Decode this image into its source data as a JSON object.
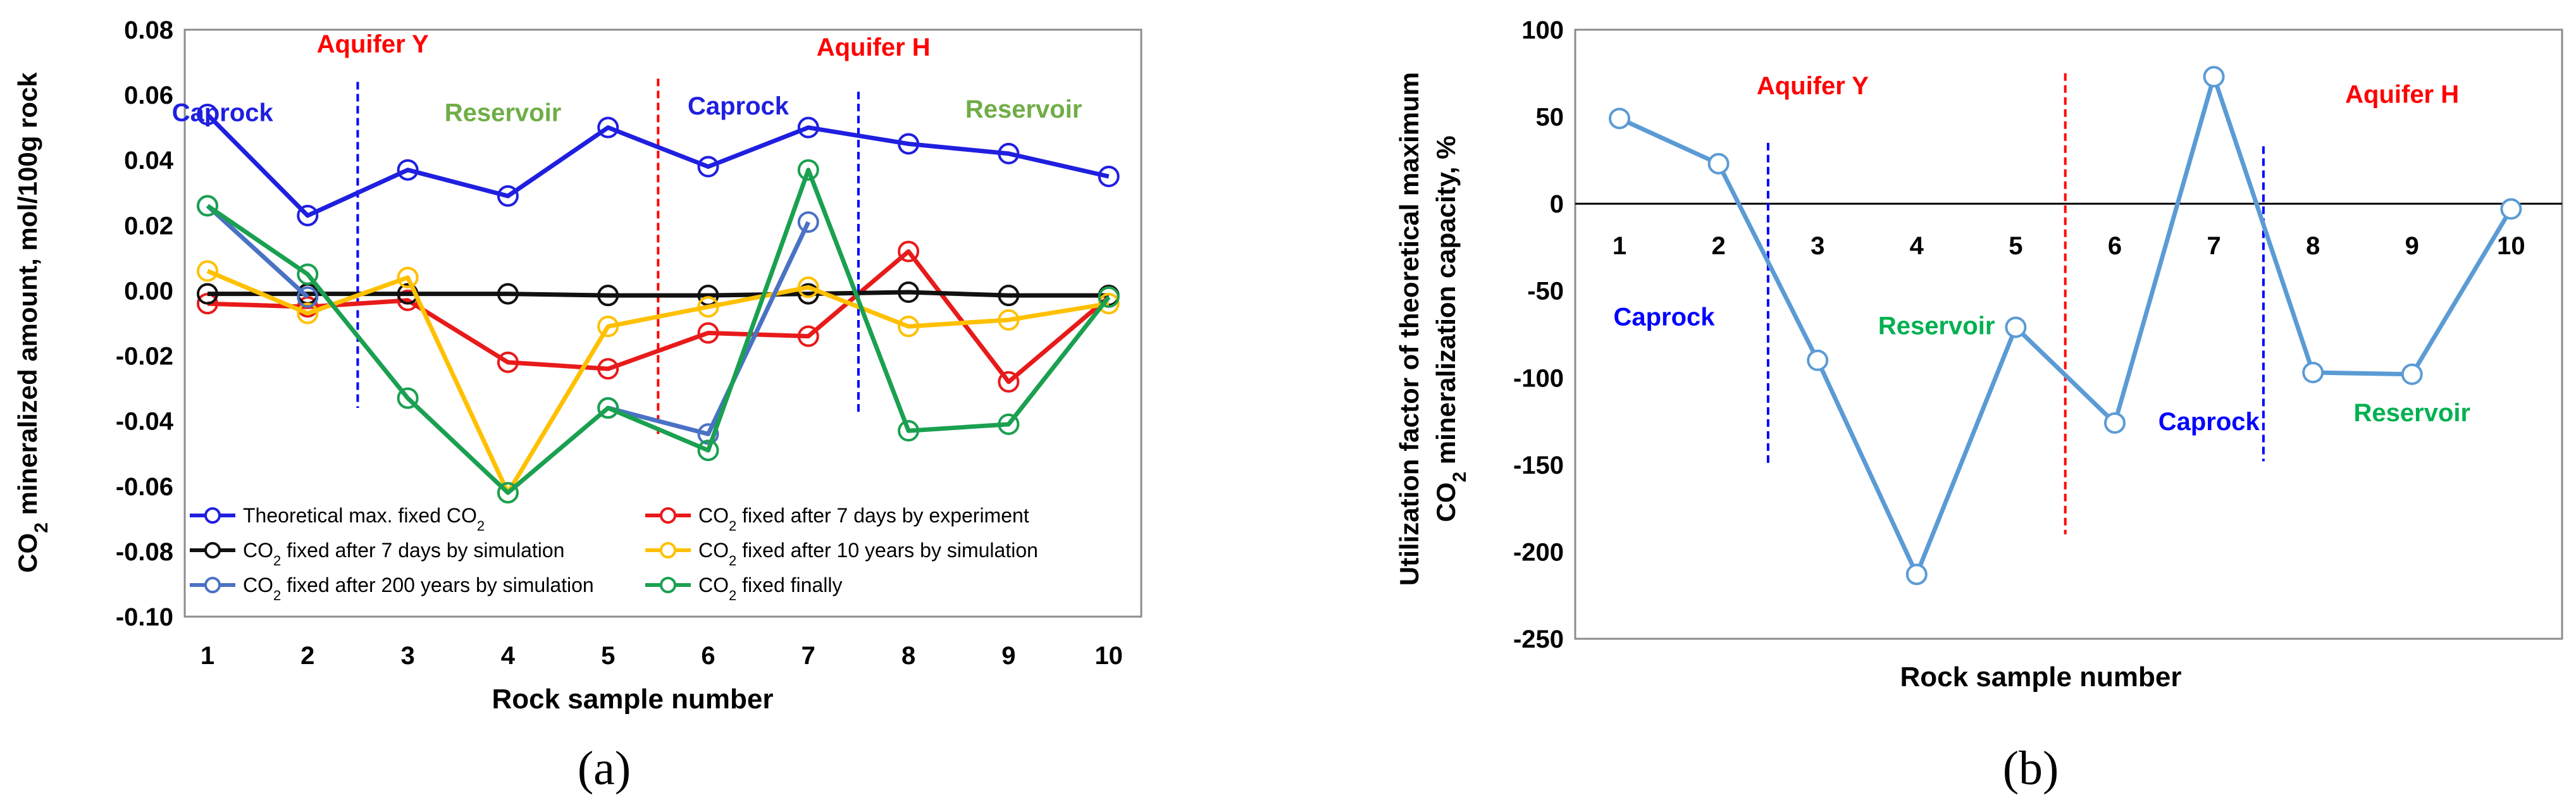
{
  "chart_data": [
    {
      "type": "line",
      "panel_label": "(a)",
      "xlabel": "Rock sample number",
      "ylabel": "CO2 mineralized amount, mol/100g rock",
      "ylabel_parts": {
        "pre": "CO",
        "sub": "2",
        "post": " mineralized amount, mol/100g rock"
      },
      "ylim": [
        -0.1,
        0.08
      ],
      "yticks": [
        "0.08",
        "0.06",
        "0.04",
        "0.02",
        "0.00",
        "-0.02",
        "-0.04",
        "-0.06",
        "-0.08",
        "-0.10"
      ],
      "x": [
        1,
        2,
        3,
        4,
        5,
        6,
        7,
        8,
        9,
        10
      ],
      "xtick_labels": [
        "1",
        "2",
        "3",
        "4",
        "5",
        "6",
        "7",
        "8",
        "9",
        "10"
      ],
      "legend_placement": "bottom-inside",
      "series": [
        {
          "name": "Theoretical max. fixed CO2",
          "label_parts": {
            "pre": "Theoretical max. fixed CO",
            "sub": "2",
            "post": ""
          },
          "color": "#1f1fe0",
          "values": [
            0.054,
            0.023,
            0.037,
            0.029,
            0.05,
            0.038,
            0.05,
            0.045,
            0.042,
            0.035
          ]
        },
        {
          "name": "CO2 fixed after 7 days by experiment",
          "label_parts": {
            "pre": "CO",
            "sub": "2",
            "post": " fixed after 7 days by experiment"
          },
          "color": "#e81a1a",
          "values": [
            -0.004,
            -0.005,
            -0.003,
            -0.022,
            -0.024,
            -0.013,
            -0.014,
            0.012,
            -0.028,
            -0.002
          ]
        },
        {
          "name": "CO2 fixed after 7 days by simulation",
          "label_parts": {
            "pre": "CO",
            "sub": "2",
            "post": " fixed after 7 days by simulation"
          },
          "color": "#111111",
          "values": [
            -0.001,
            -0.001,
            -0.001,
            -0.001,
            -0.0015,
            -0.0015,
            -0.001,
            -0.0005,
            -0.0015,
            -0.0015
          ]
        },
        {
          "name": "CO2 fixed after 10 years by simulation",
          "label_parts": {
            "pre": "CO",
            "sub": "2",
            "post": " fixed after 10 years by simulation"
          },
          "color": "#ffc000",
          "values": [
            0.006,
            -0.007,
            0.004,
            -0.062,
            -0.011,
            -0.005,
            0.001,
            -0.011,
            -0.009,
            -0.004
          ]
        },
        {
          "name": "CO2 fixed after 200 years by simulation",
          "label_parts": {
            "pre": "CO",
            "sub": "2",
            "post": " fixed after 200 years by simulation"
          },
          "color": "#4a72c4",
          "values": [
            0.026,
            -0.002,
            null,
            null,
            -0.036,
            -0.044,
            0.021,
            null,
            null,
            null
          ]
        },
        {
          "name": "CO2 fixed finally",
          "label_parts": {
            "pre": "CO",
            "sub": "2",
            "post": " fixed finally"
          },
          "color": "#1aa050",
          "values": [
            0.026,
            0.005,
            -0.033,
            -0.062,
            -0.036,
            -0.049,
            0.037,
            -0.043,
            -0.041,
            -0.002
          ]
        }
      ],
      "annotations": [
        {
          "text": "Aquifer Y",
          "color": "#ff0000",
          "x": 2.65,
          "y": 0.073
        },
        {
          "text": "Aquifer H",
          "color": "#ff0000",
          "x": 7.65,
          "y": 0.072
        },
        {
          "text": "Caprock",
          "color": "#1f1fe0",
          "x": 1.15,
          "y": 0.052
        },
        {
          "text": "Reservoir",
          "color": "#70ad47",
          "x": 3.95,
          "y": 0.052
        },
        {
          "text": "Caprock",
          "color": "#1f1fe0",
          "x": 6.3,
          "y": 0.054
        },
        {
          "text": "Reservoir",
          "color": "#70ad47",
          "x": 9.15,
          "y": 0.053
        }
      ],
      "dividers": [
        {
          "x": 2.5,
          "y_from": 0.064,
          "y_to": -0.036,
          "color": "#0000ff"
        },
        {
          "x": 5.5,
          "y_from": 0.065,
          "y_to": -0.044,
          "color": "#ff0000"
        },
        {
          "x": 7.5,
          "y_from": 0.061,
          "y_to": -0.038,
          "color": "#0000ff"
        }
      ]
    },
    {
      "type": "line",
      "panel_label": "(b)",
      "xlabel": "Rock sample number",
      "ylabel_line1": "Utilization factor of theoretical maximum",
      "ylabel_line2": "CO2 mineralization capacity, %",
      "ylabel_line2_parts": {
        "pre": "CO",
        "sub": "2",
        "post": " mineralization capacity, %"
      },
      "ylim": [
        -250,
        100
      ],
      "yticks": [
        "100",
        "50",
        "0",
        "-50",
        "-100",
        "-150",
        "-200",
        "-250"
      ],
      "x": [
        1,
        2,
        3,
        4,
        5,
        6,
        7,
        8,
        9,
        10
      ],
      "xtick_labels": [
        "1",
        "2",
        "3",
        "4",
        "5",
        "6",
        "7",
        "8",
        "9",
        "10"
      ],
      "series": [
        {
          "color": "#5b9bd5",
          "values": [
            49,
            23,
            -90,
            -213,
            -71,
            -126,
            73,
            -97,
            -98,
            -3
          ]
        }
      ],
      "annotations": [
        {
          "text": "Aquifer Y",
          "color": "#ff0000",
          "x": 2.95,
          "y": 63
        },
        {
          "text": "Aquifer H",
          "color": "#ff0000",
          "x": 8.9,
          "y": 58
        },
        {
          "text": "Caprock",
          "color": "#0000ff",
          "x": 1.45,
          "y": -70
        },
        {
          "text": "Reservoir",
          "color": "#00b050",
          "x": 4.2,
          "y": -75
        },
        {
          "text": "Caprock",
          "color": "#0000ff",
          "x": 6.95,
          "y": -130
        },
        {
          "text": "Reservoir",
          "color": "#00b050",
          "x": 9.0,
          "y": -125
        }
      ],
      "dividers": [
        {
          "x": 2.5,
          "y_from": 35,
          "y_to": -150,
          "color": "#0000ff"
        },
        {
          "x": 5.5,
          "y_from": 75,
          "y_to": -190,
          "color": "#ff0000"
        },
        {
          "x": 7.5,
          "y_from": 33,
          "y_to": -148,
          "color": "#0000ff"
        }
      ]
    }
  ]
}
